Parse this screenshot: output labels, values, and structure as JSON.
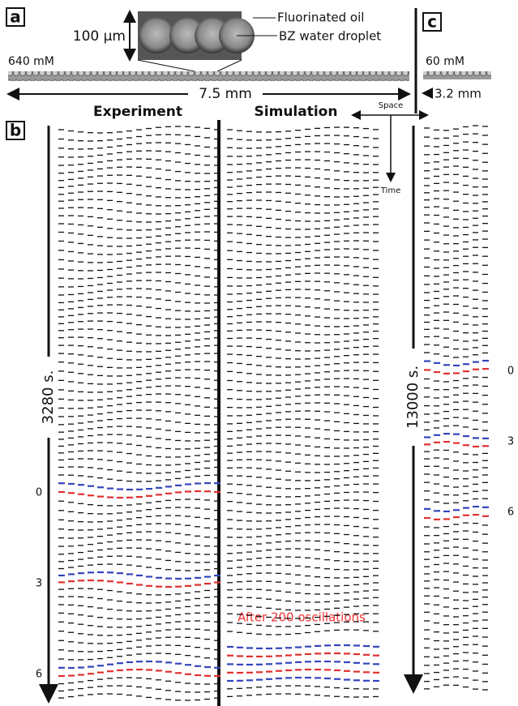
{
  "panel_a": {
    "letter": "a",
    "oil_label": "Fluorinated oil",
    "droplet_label": "BZ water droplet",
    "scale_bar": "100 µm",
    "concentration": "640 mM",
    "length": "7.5 mm"
  },
  "panel_b": {
    "letter": "b",
    "experiment_title": "Experiment",
    "simulation_title": "Simulation",
    "space_label": "Space",
    "time_label": "Time",
    "duration": "3280 s.",
    "period_labels": [
      "0",
      "3",
      "6"
    ],
    "annotation": "After 200 oscillations"
  },
  "panel_c": {
    "letter": "c",
    "concentration": "60 mM",
    "length": "3.2 mm",
    "duration": "13000 s.",
    "period_labels": [
      "0",
      "3",
      "6"
    ]
  }
}
